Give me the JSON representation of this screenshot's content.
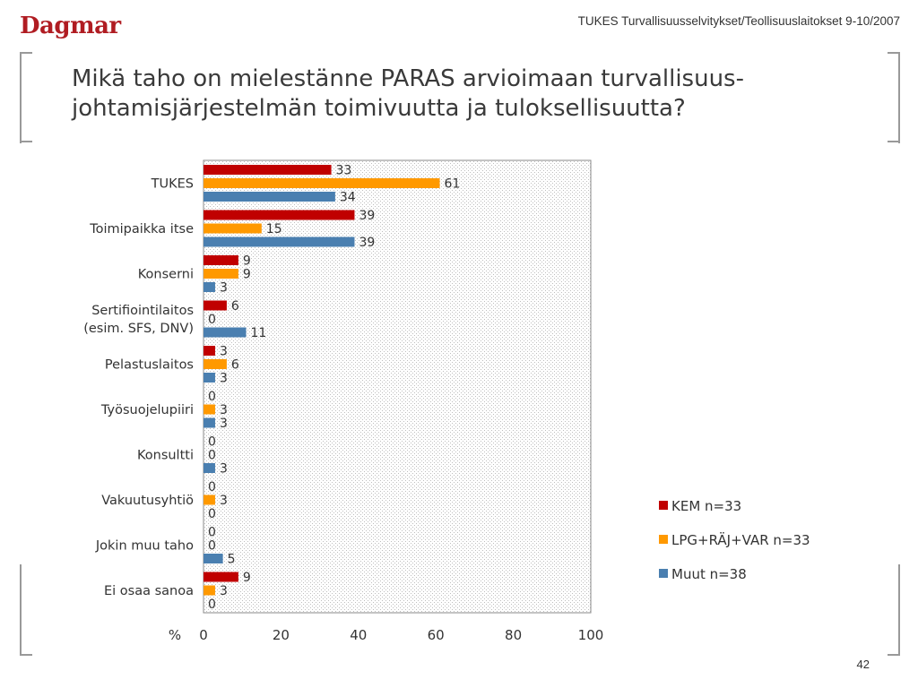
{
  "header": {
    "logo": "Dagmar",
    "source": "TUKES Turvallisuusselvitykset/Teollisuuslaitokset 9-10/2007"
  },
  "title": "Mikä taho on mielestänne PARAS arvioimaan turvallisuus-johtamisjärjestelmän toimivuutta ja tuloksellisuutta?",
  "page_number": "42",
  "chart_data": {
    "type": "bar",
    "orientation": "horizontal",
    "categories": [
      [
        "TUKES"
      ],
      [
        "Toimipaikka itse"
      ],
      [
        "Konserni"
      ],
      [
        "Sertifiointilaitos",
        "(esim. SFS, DNV)"
      ],
      [
        "Pelastuslaitos"
      ],
      [
        "Työsuojelupiiri"
      ],
      [
        "Konsultti"
      ],
      [
        "Vakuutusyhtiö"
      ],
      [
        "Jokin muu taho"
      ],
      [
        "Ei osaa sanoa"
      ]
    ],
    "series": [
      {
        "name": "KEM n=33",
        "color": "#c00000",
        "values": [
          33,
          39,
          9,
          6,
          3,
          0,
          0,
          0,
          0,
          9
        ]
      },
      {
        "name": "LPG+RÄJ+VAR n=33",
        "color": "#ff9900",
        "values": [
          61,
          15,
          9,
          0,
          6,
          3,
          0,
          3,
          0,
          3
        ]
      },
      {
        "name": "Muut n=38",
        "color": "#4a7fb0",
        "values": [
          34,
          39,
          3,
          11,
          3,
          3,
          3,
          0,
          5,
          0
        ]
      }
    ],
    "xlabel": "%",
    "xlim": [
      0,
      100
    ],
    "xticks": [
      0,
      20,
      40,
      60,
      80,
      100
    ],
    "legend_position": "right"
  }
}
